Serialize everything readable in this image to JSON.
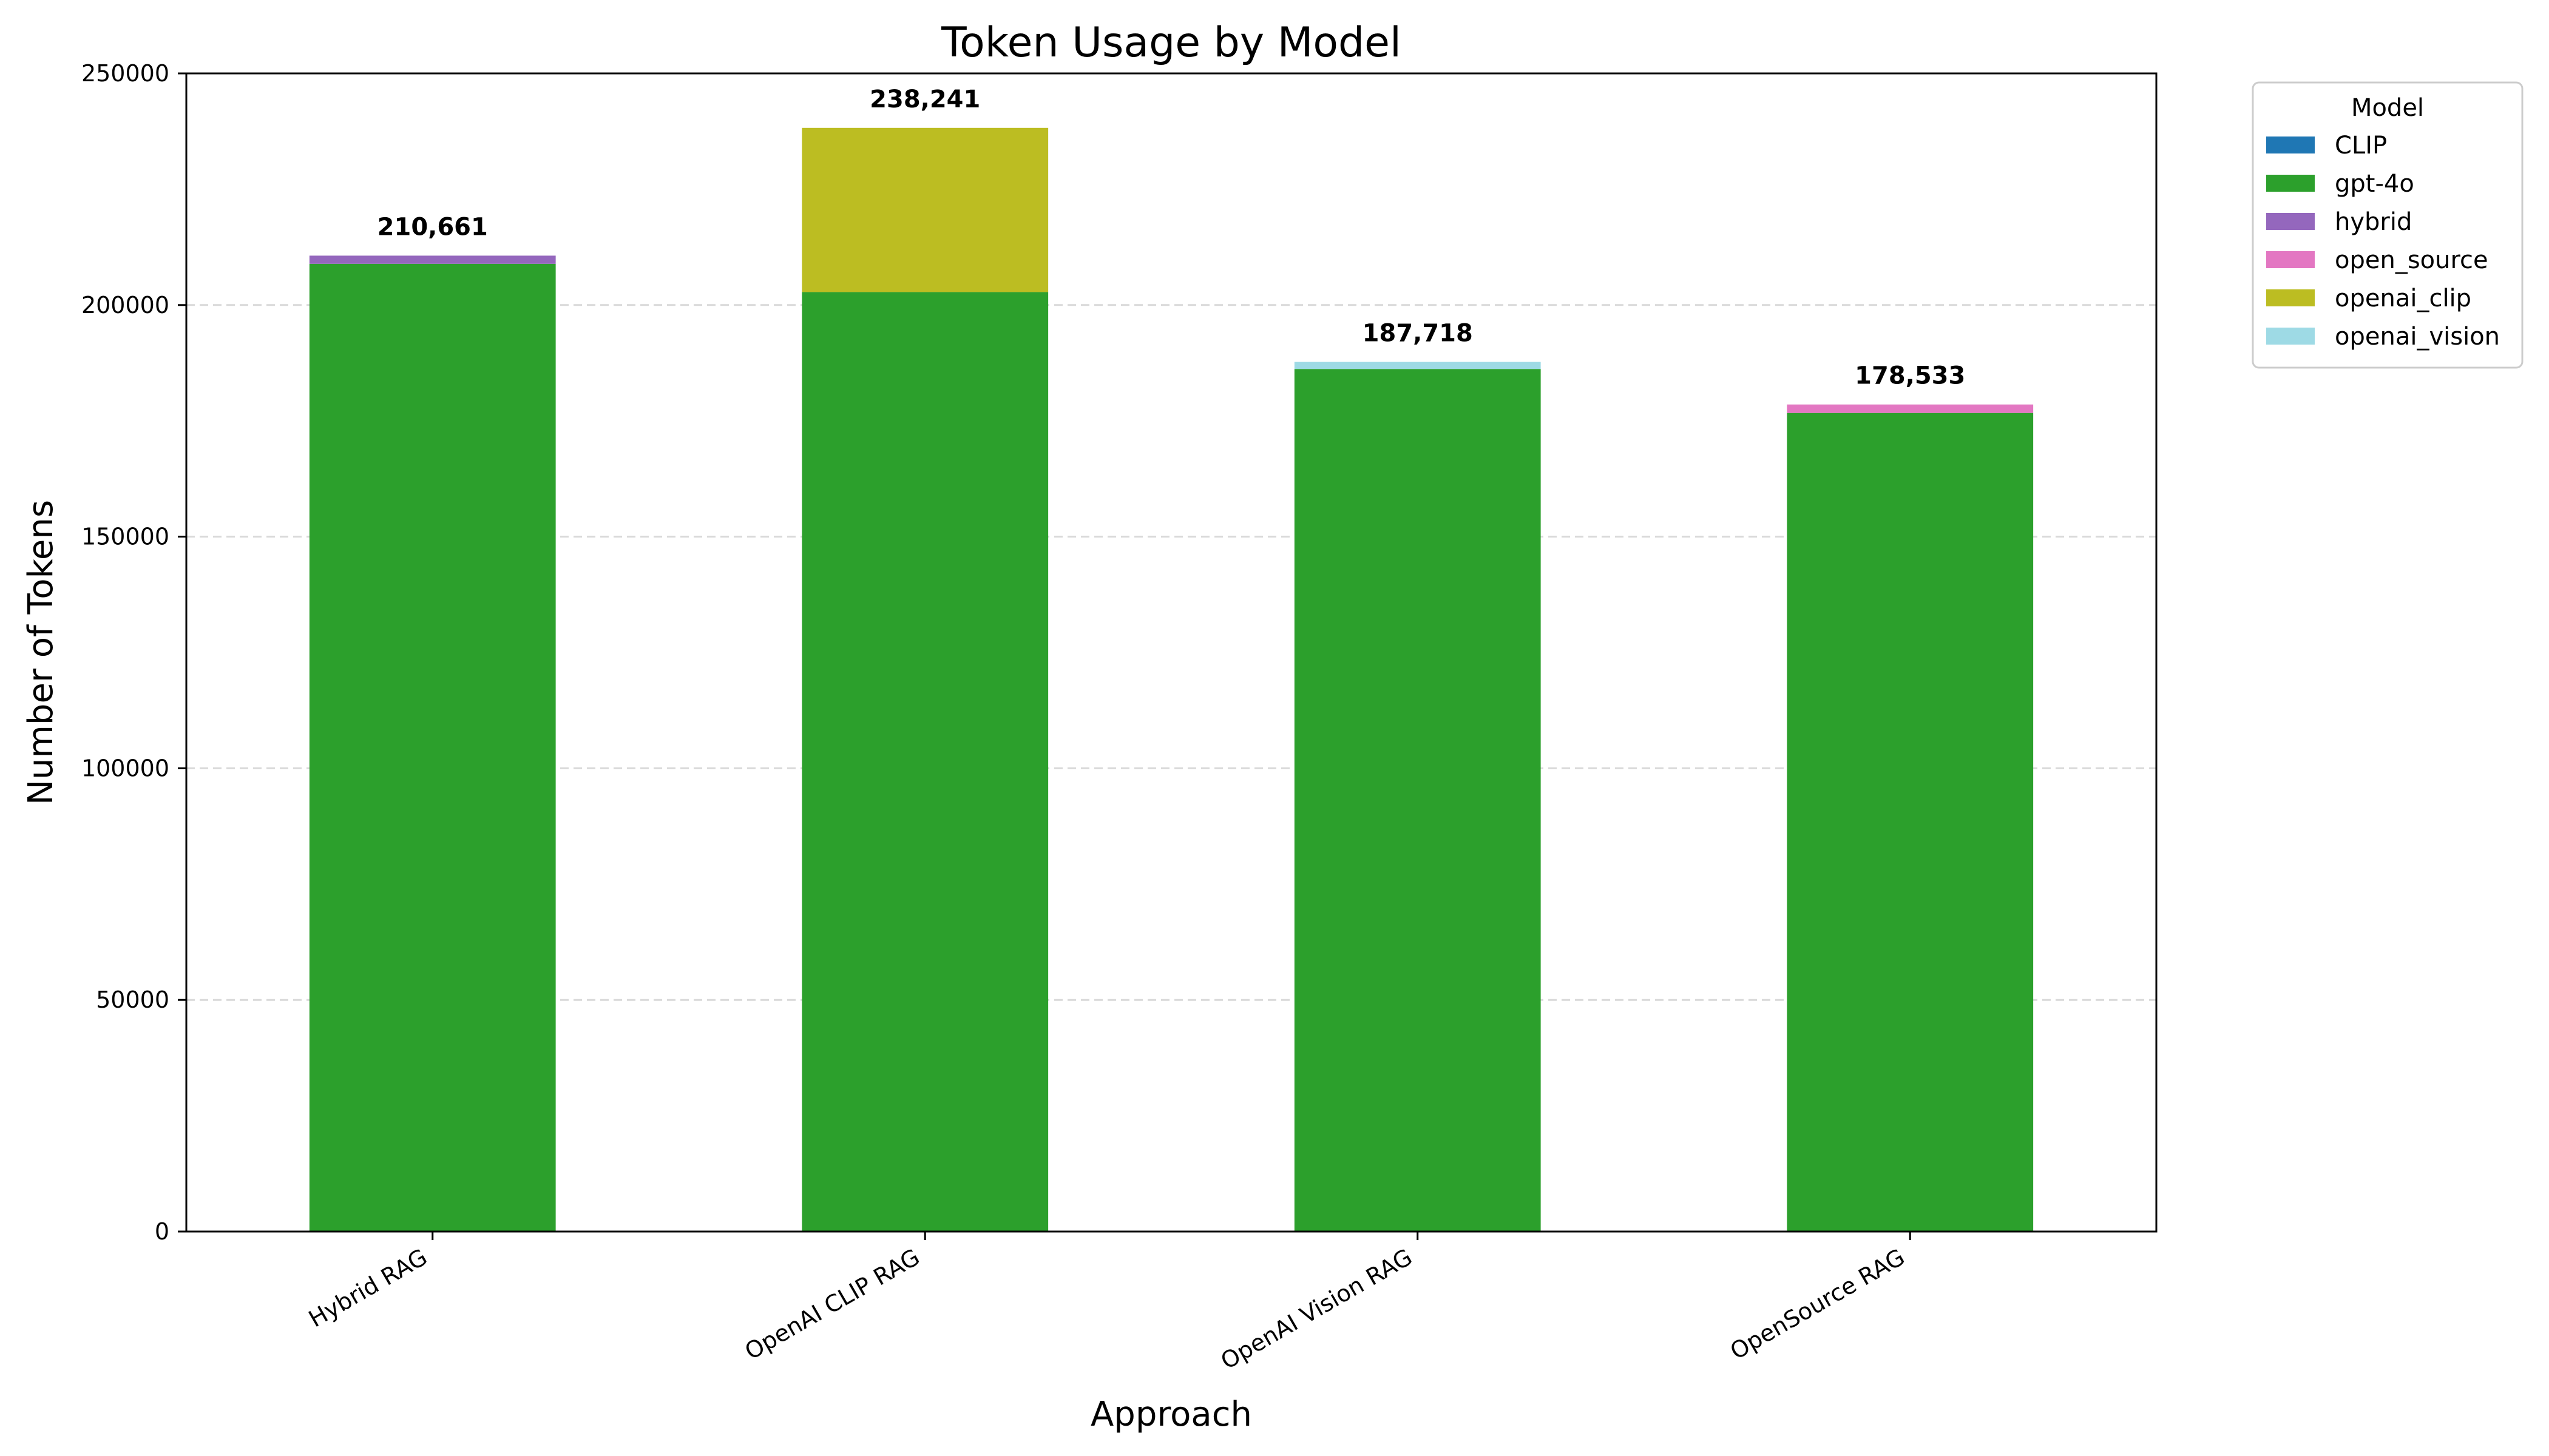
{
  "chart_data": {
    "type": "bar",
    "stacked": true,
    "title": "Token Usage by Model",
    "xlabel": "Approach",
    "ylabel": "Number of Tokens",
    "categories": [
      "Hybrid RAG",
      "OpenAI CLIP RAG",
      "OpenAI Vision RAG",
      "OpenSource RAG"
    ],
    "ylim": [
      0,
      250000
    ],
    "yticks": [
      0,
      50000,
      100000,
      150000,
      200000,
      250000
    ],
    "ytick_labels": [
      "0",
      "50000",
      "100000",
      "150000",
      "200000",
      "250000"
    ],
    "grid": "horizontal dashed",
    "legend": {
      "title": "Model",
      "placement": "outside upper right"
    },
    "series": [
      {
        "name": "CLIP",
        "color": "#1f77b4",
        "values": [
          0,
          0,
          0,
          0
        ]
      },
      {
        "name": "gpt-4o",
        "color": "#2ca02c",
        "values": [
          208900,
          202800,
          186200,
          176700
        ]
      },
      {
        "name": "hybrid",
        "color": "#9467bd",
        "values": [
          1761,
          0,
          0,
          0
        ]
      },
      {
        "name": "open_source",
        "color": "#e377c2",
        "values": [
          0,
          0,
          0,
          1833
        ]
      },
      {
        "name": "openai_clip",
        "color": "#bcbd22",
        "values": [
          0,
          35441,
          0,
          0
        ]
      },
      {
        "name": "openai_vision",
        "color": "#9edae5",
        "values": [
          0,
          0,
          1518,
          0
        ]
      }
    ],
    "totals": [
      210661,
      238241,
      187718,
      178533
    ],
    "total_labels": [
      "210,661",
      "238,241",
      "187,718",
      "178,533"
    ]
  }
}
